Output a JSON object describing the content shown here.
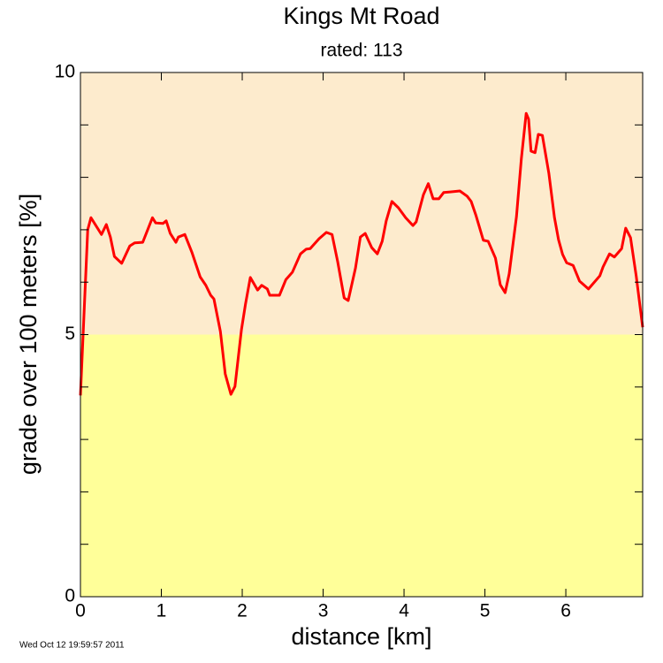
{
  "chart_data": {
    "type": "line",
    "title": "Kings Mt Road",
    "subtitle": "rated: 113",
    "xlabel": "distance [km]",
    "ylabel": "grade over 100 meters [%]",
    "timestamp": "Wed Oct 12 19:59:57 2011",
    "xlim": [
      0,
      6.95
    ],
    "ylim": [
      0,
      10
    ],
    "xticks": [
      0,
      1,
      2,
      3,
      4,
      5,
      6
    ],
    "yticks": [
      0,
      5,
      10
    ],
    "y_minor_ticks": [
      1,
      2,
      3,
      4,
      6,
      7,
      8,
      9
    ],
    "bands": [
      {
        "from": 0,
        "to": 5,
        "color": "#ffff99"
      },
      {
        "from": 5,
        "to": 10,
        "color": "#fdebcd"
      }
    ],
    "series": [
      {
        "color": "#ff0000",
        "x": [
          0,
          0.09,
          0.13,
          0.26,
          0.32,
          0.37,
          0.42,
          0.51,
          0.61,
          0.67,
          0.77,
          0.89,
          0.93,
          1.02,
          1.06,
          1.11,
          1.18,
          1.21,
          1.29,
          1.38,
          1.48,
          1.55,
          1.61,
          1.65,
          1.73,
          1.79,
          1.86,
          1.91,
          1.99,
          2.04,
          2.1,
          2.19,
          2.24,
          2.31,
          2.34,
          2.46,
          2.54,
          2.62,
          2.72,
          2.79,
          2.84,
          2.95,
          3.04,
          3.11,
          3.18,
          3.26,
          3.31,
          3.4,
          3.46,
          3.52,
          3.6,
          3.67,
          3.73,
          3.78,
          3.85,
          3.93,
          4.02,
          4.11,
          4.15,
          4.24,
          4.3,
          4.36,
          4.43,
          4.49,
          4.69,
          4.78,
          4.83,
          4.89,
          4.98,
          5.04,
          5.13,
          5.19,
          5.25,
          5.3,
          5.39,
          5.45,
          5.51,
          5.54,
          5.57,
          5.62,
          5.66,
          5.71,
          5.79,
          5.86,
          5.91,
          5.96,
          6.01,
          6.09,
          6.17,
          6.28,
          6.42,
          6.46,
          6.54,
          6.6,
          6.69,
          6.74,
          6.8,
          6.87,
          6.95
        ],
        "values": [
          3.84,
          7.0,
          7.23,
          6.91,
          7.1,
          6.86,
          6.49,
          6.36,
          6.69,
          6.75,
          6.76,
          7.23,
          7.13,
          7.12,
          7.17,
          6.93,
          6.76,
          6.86,
          6.91,
          6.56,
          6.1,
          5.94,
          5.75,
          5.68,
          5.06,
          4.25,
          3.86,
          4.01,
          5.09,
          5.58,
          6.09,
          5.85,
          5.94,
          5.87,
          5.75,
          5.75,
          6.05,
          6.19,
          6.54,
          6.63,
          6.64,
          6.83,
          6.95,
          6.91,
          6.39,
          5.7,
          5.65,
          6.27,
          6.86,
          6.93,
          6.66,
          6.54,
          6.78,
          7.17,
          7.54,
          7.42,
          7.23,
          7.08,
          7.15,
          7.67,
          7.88,
          7.59,
          7.59,
          7.71,
          7.74,
          7.64,
          7.54,
          7.27,
          6.8,
          6.78,
          6.46,
          5.95,
          5.8,
          6.16,
          7.25,
          8.35,
          9.22,
          9.11,
          8.5,
          8.47,
          8.82,
          8.8,
          8.08,
          7.23,
          6.81,
          6.53,
          6.37,
          6.32,
          6.02,
          5.87,
          6.12,
          6.29,
          6.54,
          6.48,
          6.64,
          7.03,
          6.85,
          6.12,
          5.14
        ]
      }
    ]
  }
}
